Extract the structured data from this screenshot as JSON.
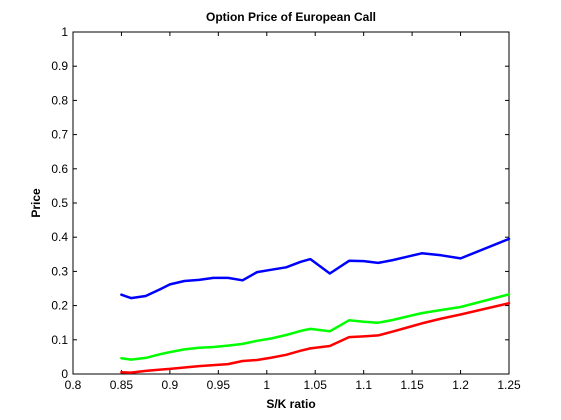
{
  "chart_data": {
    "type": "line",
    "title": "Option Price of European Call",
    "xlabel": "S/K ratio",
    "ylabel": "Price",
    "xlim": [
      0.8,
      1.25
    ],
    "ylim": [
      0,
      1
    ],
    "xticks": [
      "0.8",
      "0.85",
      "0.9",
      "0.95",
      "1",
      "1.05",
      "1.1",
      "1.15",
      "1.2",
      "1.25"
    ],
    "yticks": [
      "0",
      "0.1",
      "0.2",
      "0.3",
      "0.4",
      "0.5",
      "0.6",
      "0.7",
      "0.8",
      "0.9",
      "1"
    ],
    "grid": false,
    "x": [
      0.85,
      0.86,
      0.875,
      0.89,
      0.9,
      0.915,
      0.93,
      0.945,
      0.96,
      0.975,
      0.99,
      1.005,
      1.02,
      1.035,
      1.045,
      1.065,
      1.085,
      1.1,
      1.115,
      1.13,
      1.145,
      1.16,
      1.18,
      1.2,
      1.25
    ],
    "series": [
      {
        "color": "#0000ff",
        "values": [
          0.232,
          0.222,
          0.228,
          0.248,
          0.262,
          0.272,
          0.275,
          0.281,
          0.281,
          0.274,
          0.298,
          0.305,
          0.312,
          0.328,
          0.336,
          0.294,
          0.331,
          0.33,
          0.325,
          0.333,
          0.343,
          0.353,
          0.347,
          0.338,
          0.395
        ]
      },
      {
        "color": "#00ff00",
        "values": [
          0.046,
          0.042,
          0.047,
          0.058,
          0.064,
          0.072,
          0.077,
          0.079,
          0.083,
          0.088,
          0.097,
          0.104,
          0.114,
          0.126,
          0.132,
          0.125,
          0.157,
          0.153,
          0.15,
          0.158,
          0.168,
          0.178,
          0.187,
          0.196,
          0.233
        ]
      },
      {
        "color": "#ff0000",
        "values": [
          0.005,
          0.004,
          0.009,
          0.013,
          0.015,
          0.019,
          0.023,
          0.026,
          0.029,
          0.038,
          0.041,
          0.048,
          0.056,
          0.068,
          0.075,
          0.082,
          0.108,
          0.11,
          0.113,
          0.124,
          0.136,
          0.148,
          0.162,
          0.174,
          0.207
        ]
      }
    ]
  }
}
